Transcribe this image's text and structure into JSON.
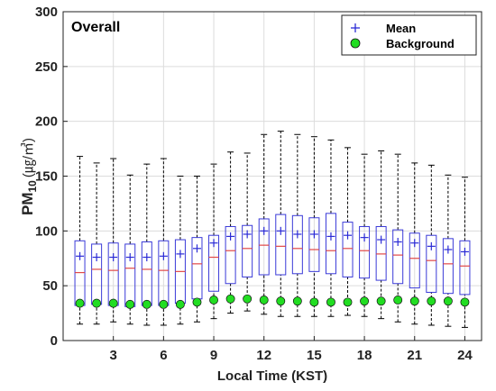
{
  "chart_data": {
    "type": "boxplot",
    "panel_label": "Overall",
    "xlabel": "Local Time (KST)",
    "ylabel_main": "PM",
    "ylabel_sub": "10",
    "ylabel_units": "(㎍/㎥)",
    "xlim": [
      0,
      25
    ],
    "ylim": [
      0,
      300
    ],
    "xticks": [
      3,
      6,
      9,
      12,
      15,
      18,
      21,
      24
    ],
    "yticks": [
      0,
      50,
      100,
      150,
      200,
      250,
      300
    ],
    "grid": true,
    "legend_position": "top-right",
    "legend": [
      {
        "name": "Mean",
        "marker": "plus",
        "color": "#2b2bd6"
      },
      {
        "name": "Background",
        "marker": "circle",
        "color": "#22dd22"
      }
    ],
    "colors": {
      "box": "#3a3ad8",
      "median": "#e04848",
      "whisker": "#000000",
      "mean": "#2b2bd6",
      "background": "#22dd22"
    },
    "hours": [
      1,
      2,
      3,
      4,
      5,
      6,
      7,
      8,
      9,
      10,
      11,
      12,
      13,
      14,
      15,
      16,
      17,
      18,
      19,
      20,
      21,
      22,
      23,
      24
    ],
    "whisker_low": [
      15,
      15,
      17,
      15,
      14,
      14,
      15,
      17,
      20,
      25,
      27,
      24,
      22,
      22,
      22,
      22,
      23,
      22,
      20,
      17,
      15,
      14,
      13,
      12
    ],
    "q1": [
      32,
      33,
      32,
      31,
      32,
      32,
      34,
      38,
      45,
      52,
      58,
      60,
      60,
      61,
      63,
      61,
      58,
      57,
      55,
      52,
      48,
      44,
      43,
      42
    ],
    "median": [
      62,
      65,
      64,
      66,
      65,
      64,
      63,
      70,
      76,
      82,
      84,
      87,
      86,
      84,
      83,
      82,
      84,
      82,
      79,
      78,
      75,
      73,
      70,
      68
    ],
    "q3": [
      91,
      88,
      89,
      88,
      90,
      91,
      92,
      94,
      96,
      104,
      105,
      111,
      115,
      114,
      112,
      116,
      108,
      104,
      104,
      101,
      98,
      96,
      93,
      91
    ],
    "whisker_high": [
      168,
      162,
      166,
      151,
      161,
      166,
      150,
      150,
      161,
      172,
      171,
      188,
      191,
      188,
      186,
      183,
      176,
      170,
      173,
      170,
      162,
      160,
      151,
      149
    ],
    "mean": [
      77,
      76,
      76,
      76,
      76,
      77,
      79,
      84,
      89,
      95,
      97,
      100,
      100,
      97,
      97,
      95,
      96,
      94,
      92,
      90,
      89,
      86,
      83,
      81
    ],
    "background": [
      34,
      34,
      34,
      33,
      33,
      33,
      33,
      35,
      37,
      38,
      38,
      37,
      36,
      36,
      35,
      35,
      35,
      36,
      36,
      37,
      36,
      36,
      36,
      35
    ]
  }
}
